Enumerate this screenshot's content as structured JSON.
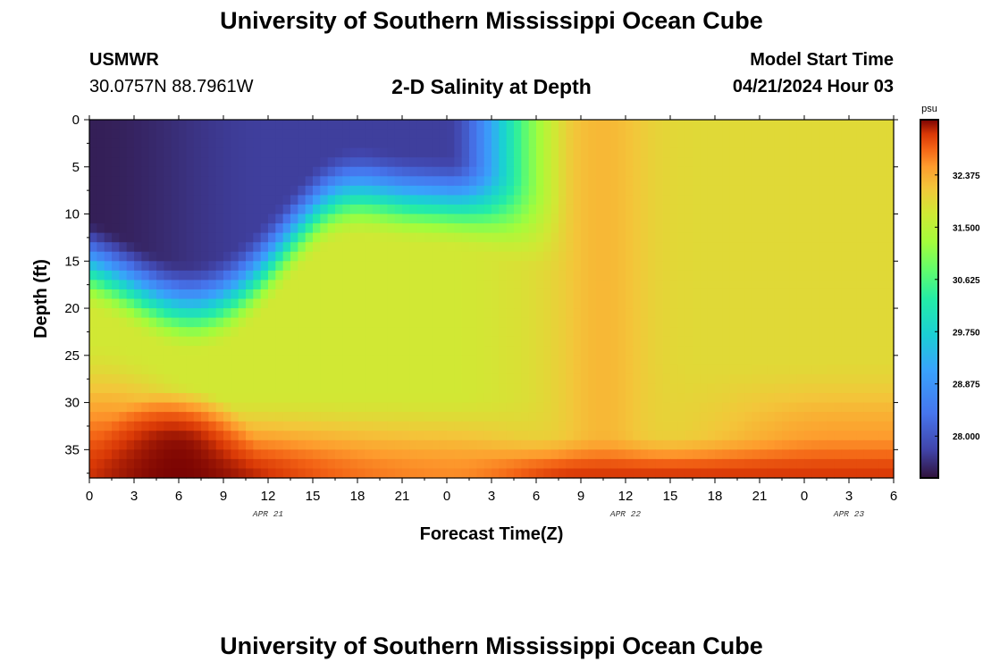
{
  "header": {
    "title": "University of Southern Mississippi Ocean Cube",
    "station": "USMWR",
    "coordinates": "30.0757N  88.7961W",
    "plot_title": "2-D Salinity at Depth",
    "start_label": "Model Start Time",
    "start_value": "04/21/2024 Hour 03"
  },
  "footer": {
    "title": "University of Southern Mississippi Ocean Cube"
  },
  "chart_data": {
    "type": "heatmap",
    "title": "2-D Salinity at Depth",
    "xlabel": "Forecast Time(Z)",
    "ylabel": "Depth (ft)",
    "x_hours_since_start_range": [
      0,
      54
    ],
    "x_tick_labels": [
      "0",
      "3",
      "6",
      "9",
      "12",
      "15",
      "18",
      "21",
      "0",
      "3",
      "6",
      "9",
      "12",
      "15",
      "18",
      "21",
      "0",
      "3",
      "6"
    ],
    "date_labels": [
      {
        "label": "APR 21",
        "at_hour": 12
      },
      {
        "label": "APR 22",
        "at_hour": 36
      },
      {
        "label": "APR 23",
        "at_hour": 51
      }
    ],
    "ylim": [
      0,
      38
    ],
    "y_ticks": [
      0,
      5,
      10,
      15,
      20,
      25,
      30,
      35
    ],
    "y_inverted": true,
    "colorbar": {
      "unit": "psu",
      "min": 27.3,
      "max": 33.3,
      "ticks": [
        "28.000",
        "28.875",
        "29.750",
        "30.625",
        "31.500",
        "32.375"
      ]
    },
    "colors": {
      "low": "#30123b",
      "high": "#7a0403"
    }
  }
}
